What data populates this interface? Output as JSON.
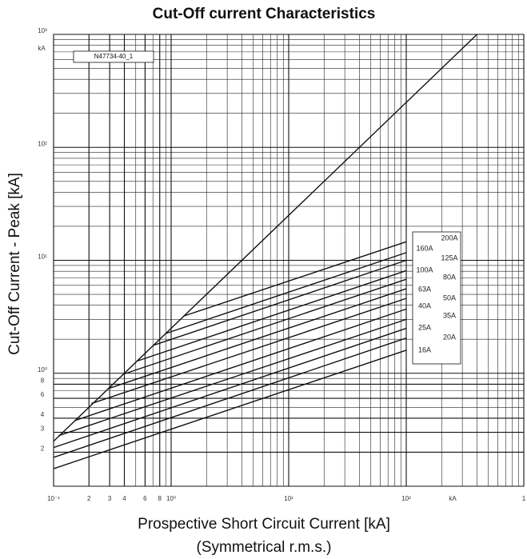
{
  "chart_data": {
    "type": "line",
    "title": "Cut-Off current Characteristics",
    "x_label": "Prospective Short Circuit Current [kA]",
    "x_label_2": "(Symmetrical r.m.s.)",
    "y_label": "Cut-Off Current - Peak [kA]",
    "annotations": {
      "note": "N47734-40_1",
      "y_unit": "kA",
      "x_unit": "kA"
    },
    "log_x": true,
    "log_y": true,
    "grid": true,
    "color": "#111111",
    "xlim": [
      0.1,
      1000
    ],
    "ylim": [
      0.1,
      1000
    ],
    "xticks": [
      {
        "value": 0.1,
        "label": "10⁻¹"
      },
      {
        "value": 0.2,
        "label": "2"
      },
      {
        "value": 0.3,
        "label": "3"
      },
      {
        "value": 0.4,
        "label": "4"
      },
      {
        "value": 0.6,
        "label": "6"
      },
      {
        "value": 0.8,
        "label": "8"
      },
      {
        "value": 1,
        "label": "10⁰"
      },
      {
        "value": 10,
        "label": "10¹"
      },
      {
        "value": 100,
        "label": "10²"
      },
      {
        "value": 1000,
        "label": "1"
      }
    ],
    "yticks": [
      {
        "value": 0.2,
        "label": "2"
      },
      {
        "value": 0.3,
        "label": "3"
      },
      {
        "value": 0.4,
        "label": "4"
      },
      {
        "value": 0.6,
        "label": "6"
      },
      {
        "value": 0.8,
        "label": "8"
      },
      {
        "value": 1,
        "label": "10⁰"
      },
      {
        "value": 10,
        "label": "10¹"
      },
      {
        "value": 100,
        "label": "10²"
      },
      {
        "value": 1000,
        "label": "10³"
      }
    ],
    "series": [
      {
        "x": [
          0.1,
          400
        ],
        "values": [
          0.25,
          1000
        ]
      },
      {
        "name": "200A",
        "x": [
          1.27,
          100
        ],
        "values": [
          3.2,
          14.6
        ]
      },
      {
        "name": "160A",
        "x": [
          0.9,
          100
        ],
        "values": [
          2.25,
          11.7
        ]
      },
      {
        "name": "125A",
        "x": [
          0.71,
          100
        ],
        "values": [
          1.77,
          10
        ]
      },
      {
        "name": "100A",
        "x": [
          0.51,
          100
        ],
        "values": [
          1.28,
          8.1
        ]
      },
      {
        "name": "80A",
        "x": [
          0.39,
          100
        ],
        "values": [
          0.98,
          6.8
        ]
      },
      {
        "name": "63A",
        "x": [
          0.29,
          100
        ],
        "values": [
          0.73,
          5.6
        ]
      },
      {
        "name": "50A",
        "x": [
          0.21,
          100
        ],
        "values": [
          0.54,
          4.6
        ]
      },
      {
        "name": "40A",
        "x": [
          0.15,
          100
        ],
        "values": [
          0.38,
          3.7
        ]
      },
      {
        "name": "35A",
        "x": [
          0.11,
          100
        ],
        "values": [
          0.28,
          3.0
        ]
      },
      {
        "name": "25A",
        "x": [
          0.1,
          100
        ],
        "values": [
          0.22,
          2.5
        ]
      },
      {
        "name": "20A",
        "x": [
          0.1,
          100
        ],
        "values": [
          0.18,
          2.05
        ]
      },
      {
        "name": "16A",
        "x": [
          0.1,
          100
        ],
        "values": [
          0.143,
          1.6
        ]
      }
    ]
  }
}
